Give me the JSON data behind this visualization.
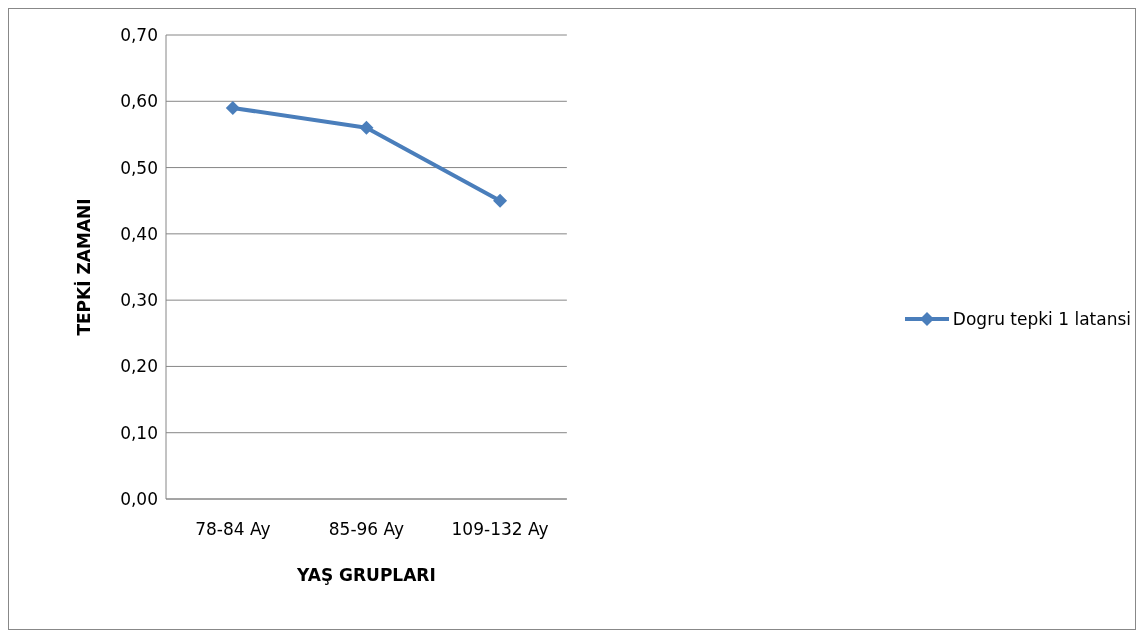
{
  "chart_data": {
    "type": "line",
    "xlabel": "YAŞ GRUPLARI",
    "ylabel": "TEPKİ ZAMANI",
    "categories": [
      "78-84 Ay",
      "85-96 Ay",
      "109-132 Ay"
    ],
    "series": [
      {
        "name": "Dogru tepki 1 latansi",
        "color": "#4a7ebb",
        "values": [
          0.59,
          0.56,
          0.45
        ]
      }
    ],
    "ylim": [
      0,
      0.7
    ],
    "yticks": [
      {
        "value": 0,
        "label": "0,00"
      },
      {
        "value": 0.1,
        "label": "0,10"
      },
      {
        "value": 0.2,
        "label": "0,20"
      },
      {
        "value": 0.3,
        "label": "0,30"
      },
      {
        "value": 0.4,
        "label": "0,40"
      },
      {
        "value": 0.5,
        "label": "0,50"
      },
      {
        "value": 0.6,
        "label": "0,60"
      },
      {
        "value": 0.7,
        "label": "0,70"
      }
    ],
    "grid": "y",
    "legend": "right",
    "marker": "diamond",
    "line_style": "solid"
  }
}
